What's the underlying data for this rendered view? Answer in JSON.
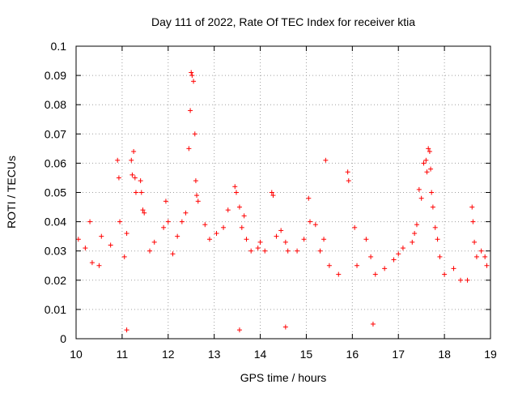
{
  "chart_data": {
    "type": "scatter",
    "title": "Day 111 of 2022, Rate Of TEC Index for receiver ktia",
    "xlabel": "GPS time / hours",
    "ylabel": "ROTI / TECUs",
    "xlim": [
      10,
      19
    ],
    "ylim": [
      0,
      0.1
    ],
    "xticks": [
      10,
      11,
      12,
      13,
      14,
      15,
      16,
      17,
      18,
      19
    ],
    "xtick_labels": [
      "10",
      "11",
      "12",
      "13",
      "14",
      "15",
      "16",
      "17",
      "18",
      "19"
    ],
    "yticks": [
      0,
      0.01,
      0.02,
      0.03,
      0.04,
      0.05,
      0.06,
      0.07,
      0.08,
      0.09,
      0.1
    ],
    "ytick_labels": [
      "0",
      "0.01",
      "0.02",
      "0.03",
      "0.04",
      "0.05",
      "0.06",
      "0.07",
      "0.08",
      "0.09",
      "0.1"
    ],
    "grid": true,
    "marker": "+",
    "color": "#ff0000",
    "series": [
      {
        "name": "ROTI",
        "points": [
          [
            10.05,
            0.034
          ],
          [
            10.2,
            0.031
          ],
          [
            10.3,
            0.04
          ],
          [
            10.35,
            0.026
          ],
          [
            10.5,
            0.025
          ],
          [
            10.55,
            0.035
          ],
          [
            10.75,
            0.032
          ],
          [
            10.9,
            0.061
          ],
          [
            10.93,
            0.055
          ],
          [
            10.95,
            0.04
          ],
          [
            11.05,
            0.028
          ],
          [
            11.1,
            0.036
          ],
          [
            11.2,
            0.061
          ],
          [
            11.25,
            0.064
          ],
          [
            11.22,
            0.056
          ],
          [
            11.28,
            0.055
          ],
          [
            11.3,
            0.05
          ],
          [
            11.4,
            0.054
          ],
          [
            11.42,
            0.05
          ],
          [
            11.45,
            0.044
          ],
          [
            11.48,
            0.043
          ],
          [
            11.6,
            0.03
          ],
          [
            11.7,
            0.033
          ],
          [
            11.9,
            0.038
          ],
          [
            11.95,
            0.047
          ],
          [
            12.0,
            0.04
          ],
          [
            12.1,
            0.029
          ],
          [
            12.2,
            0.035
          ],
          [
            12.3,
            0.04
          ],
          [
            12.38,
            0.043
          ],
          [
            12.45,
            0.065
          ],
          [
            12.48,
            0.078
          ],
          [
            12.5,
            0.091
          ],
          [
            12.52,
            0.09
          ],
          [
            12.55,
            0.088
          ],
          [
            12.58,
            0.07
          ],
          [
            12.6,
            0.054
          ],
          [
            12.62,
            0.049
          ],
          [
            12.65,
            0.047
          ],
          [
            12.8,
            0.039
          ],
          [
            12.9,
            0.034
          ],
          [
            13.05,
            0.036
          ],
          [
            13.2,
            0.038
          ],
          [
            13.3,
            0.044
          ],
          [
            13.45,
            0.052
          ],
          [
            13.48,
            0.05
          ],
          [
            13.55,
            0.045
          ],
          [
            13.6,
            0.038
          ],
          [
            13.65,
            0.042
          ],
          [
            13.7,
            0.034
          ],
          [
            13.8,
            0.03
          ],
          [
            13.95,
            0.031
          ],
          [
            14.0,
            0.033
          ],
          [
            14.1,
            0.03
          ],
          [
            14.25,
            0.05
          ],
          [
            14.28,
            0.049
          ],
          [
            14.35,
            0.035
          ],
          [
            14.45,
            0.037
          ],
          [
            14.55,
            0.033
          ],
          [
            14.6,
            0.03
          ],
          [
            14.8,
            0.03
          ],
          [
            14.95,
            0.034
          ],
          [
            15.05,
            0.048
          ],
          [
            15.08,
            0.04
          ],
          [
            15.2,
            0.039
          ],
          [
            15.3,
            0.03
          ],
          [
            15.38,
            0.034
          ],
          [
            15.42,
            0.061
          ],
          [
            15.5,
            0.025
          ],
          [
            15.7,
            0.022
          ],
          [
            15.9,
            0.057
          ],
          [
            15.92,
            0.054
          ],
          [
            16.05,
            0.038
          ],
          [
            16.1,
            0.025
          ],
          [
            16.3,
            0.034
          ],
          [
            16.4,
            0.028
          ],
          [
            16.5,
            0.022
          ],
          [
            16.7,
            0.024
          ],
          [
            16.9,
            0.027
          ],
          [
            17.0,
            0.029
          ],
          [
            17.1,
            0.031
          ],
          [
            17.3,
            0.033
          ],
          [
            17.35,
            0.036
          ],
          [
            17.4,
            0.039
          ],
          [
            17.45,
            0.051
          ],
          [
            17.5,
            0.048
          ],
          [
            17.55,
            0.06
          ],
          [
            17.6,
            0.061
          ],
          [
            17.62,
            0.057
          ],
          [
            17.65,
            0.065
          ],
          [
            17.68,
            0.064
          ],
          [
            17.7,
            0.058
          ],
          [
            17.72,
            0.05
          ],
          [
            17.75,
            0.045
          ],
          [
            17.8,
            0.038
          ],
          [
            17.85,
            0.034
          ],
          [
            17.9,
            0.028
          ],
          [
            18.0,
            0.022
          ],
          [
            18.2,
            0.024
          ],
          [
            18.35,
            0.02
          ],
          [
            18.5,
            0.02
          ],
          [
            18.6,
            0.045
          ],
          [
            18.62,
            0.04
          ],
          [
            18.65,
            0.033
          ],
          [
            18.7,
            0.028
          ],
          [
            18.8,
            0.03
          ],
          [
            18.88,
            0.028
          ],
          [
            18.92,
            0.025
          ],
          [
            11.1,
            0.003
          ],
          [
            13.55,
            0.003
          ],
          [
            14.55,
            0.004
          ],
          [
            16.45,
            0.005
          ]
        ]
      }
    ]
  }
}
